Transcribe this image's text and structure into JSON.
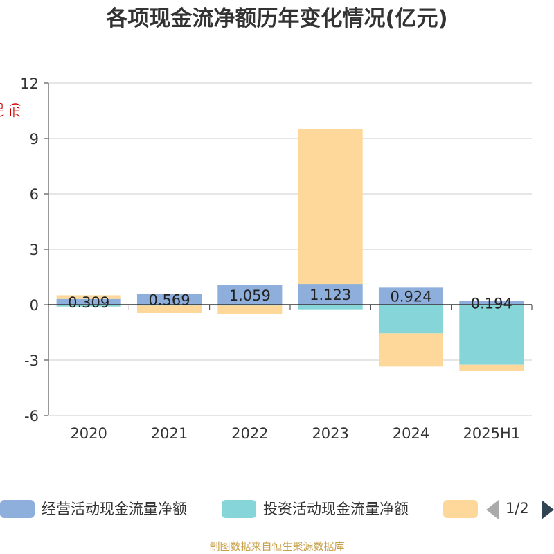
{
  "title": "各项现金流净额历年变化情况(亿元)",
  "unit_label": "(亿元)",
  "source": "制图数据来自恒生聚源数据库",
  "legend": {
    "items": [
      {
        "label": "经营活动现金流量净额",
        "color": "#8eaedb"
      },
      {
        "label": "投资活动现金流量净额",
        "color": "#86d5d8"
      },
      {
        "label": "",
        "color": "#fdd89a"
      }
    ],
    "pager": "1/2"
  },
  "chart_data": {
    "type": "bar",
    "stacked": true,
    "categories": [
      "2020",
      "2021",
      "2022",
      "2023",
      "2024",
      "2025H1"
    ],
    "ylim": [
      -6,
      12
    ],
    "yticks": [
      -6,
      -3,
      0,
      3,
      6,
      9,
      12
    ],
    "grid": true,
    "legend_position": "bottom",
    "series": [
      {
        "name": "经营活动现金流量净额",
        "color": "#8eaedb",
        "values": [
          0.309,
          0.569,
          1.059,
          1.123,
          0.924,
          0.194
        ],
        "labels": [
          "0.309",
          "0.569",
          "1.059",
          "1.123",
          "0.924",
          "0.194"
        ]
      },
      {
        "name": "投资活动现金流量净额",
        "color": "#86d5d8",
        "values": [
          -0.1,
          -0.05,
          -0.05,
          -0.25,
          -1.55,
          -3.25
        ]
      },
      {
        "color": "#fdd89a",
        "values": [
          0.2,
          -0.4,
          -0.45,
          8.4,
          -1.8,
          -0.35
        ]
      }
    ]
  }
}
